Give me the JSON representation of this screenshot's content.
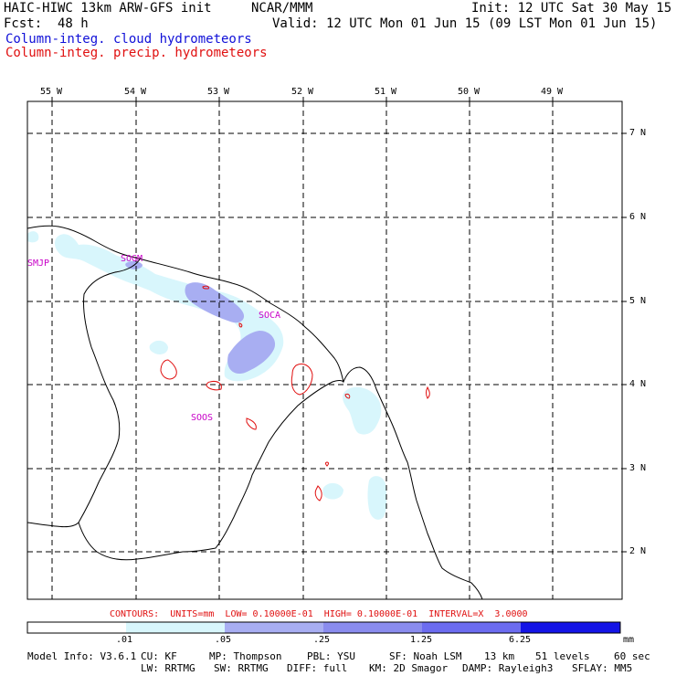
{
  "header": {
    "model": "HAIC-HIWC 13km ARW-GFS init",
    "org": "NCAR/MMM",
    "init": "Init: 12 UTC Sat 30 May 15",
    "fcst_label": "Fcst:",
    "fcst_value": "48 h",
    "valid": "Valid: 12 UTC Mon 01 Jun 15 (09 LST Mon 01 Jun 15)",
    "field1": "Column-integ. cloud hydrometeors",
    "field2": "Column-integ. precip. hydrometeors"
  },
  "colors": {
    "field1_text": "#1010d8",
    "field2_text": "#e01010",
    "station_text": "#c800c8",
    "contour": "#e01010",
    "shade_1": "#d8f6fc",
    "shade_2": "#a8aef2",
    "shade_3": "#6c6cf0",
    "shade_4": "#1414e6"
  },
  "axes": {
    "lon_labels": [
      "55 W",
      "54 W",
      "53 W",
      "52 W",
      "51 W",
      "50 W",
      "49 W"
    ],
    "lat_labels": [
      "7 N",
      "6 N",
      "5 N",
      "4 N",
      "3 N",
      "2 N"
    ]
  },
  "stations": [
    {
      "id": "SMJP"
    },
    {
      "id": "SOGM"
    },
    {
      "id": "SOCA"
    },
    {
      "id": "SOOS"
    }
  ],
  "contour_info": "CONTOURS:  UNITS=mm  LOW= 0.10000E-01  HIGH= 0.10000E-01  INTERVAL=X  3.0000",
  "colorbar": {
    "ticks": [
      ".01",
      ".05",
      ".25",
      "1.25",
      "6.25"
    ],
    "units": "mm"
  },
  "model_info": {
    "line1": [
      "Model Info: V3.6.1",
      "CU: KF",
      "MP: Thompson",
      "PBL: YSU",
      "SF: Noah LSM",
      "13 km",
      "51 levels",
      "60 sec"
    ],
    "line2": [
      "LW: RRTMG",
      "SW: RRTMG",
      "DIFF: full",
      "KM: 2D Smagor",
      "DAMP: Rayleigh3",
      "SFLAY: MM5"
    ]
  }
}
